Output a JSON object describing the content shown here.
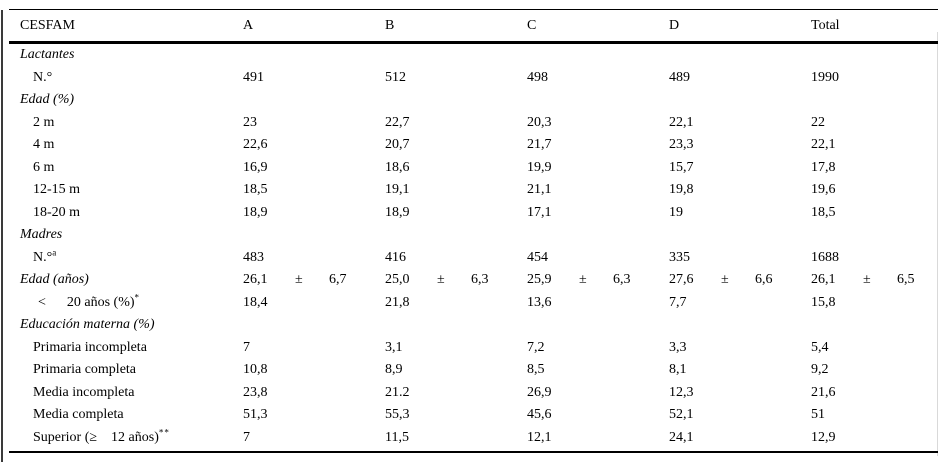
{
  "table": {
    "columns": [
      "CESFAM",
      "A",
      "B",
      "C",
      "D",
      "Total"
    ],
    "rows": [
      {
        "type": "section",
        "label": "Lactantes",
        "italic": true,
        "indent": 0
      },
      {
        "type": "data",
        "label": "N.°",
        "italic": false,
        "indent": 1,
        "cells": [
          "491",
          "512",
          "498",
          "489",
          "1990"
        ]
      },
      {
        "type": "section",
        "label": "Edad (%)",
        "italic": true,
        "indent": 0
      },
      {
        "type": "data",
        "label": "2 m",
        "italic": false,
        "indent": 1,
        "cells": [
          "23",
          "22,7",
          "20,3",
          "22,1",
          "22"
        ]
      },
      {
        "type": "data",
        "label": "4 m",
        "italic": false,
        "indent": 1,
        "cells": [
          "22,6",
          "20,7",
          "21,7",
          "23,3",
          "22,1"
        ]
      },
      {
        "type": "data",
        "label": "6 m",
        "italic": false,
        "indent": 1,
        "cells": [
          "16,9",
          "18,6",
          "19,9",
          "15,7",
          "17,8"
        ]
      },
      {
        "type": "data",
        "label": "12-15 m",
        "italic": false,
        "indent": 1,
        "cells": [
          "18,5",
          "19,1",
          "21,1",
          "19,8",
          "19,6"
        ]
      },
      {
        "type": "data",
        "label": "18-20 m",
        "italic": false,
        "indent": 1,
        "cells": [
          "18,9",
          "18,9",
          "17,1",
          "19",
          "18,5"
        ]
      },
      {
        "type": "section",
        "label": "Madres",
        "italic": true,
        "indent": 0
      },
      {
        "type": "data",
        "label": "N.°",
        "sup": "a",
        "italic": false,
        "indent": 1,
        "cells": [
          "483",
          "416",
          "454",
          "335",
          "1688"
        ]
      },
      {
        "type": "data",
        "label": "Edad (años)",
        "italic": true,
        "indent": 0,
        "cells": [
          [
            "26,1",
            "±",
            "6,7"
          ],
          [
            "25,0",
            "±",
            "6,3"
          ],
          [
            "25,9",
            "±",
            "6,3"
          ],
          [
            "27,6",
            "±",
            "6,6"
          ],
          [
            "26,1",
            "±",
            "6,5"
          ]
        ]
      },
      {
        "type": "data",
        "label": "<      20 años (%)",
        "sup": "*",
        "italic": false,
        "indent": 2,
        "cells": [
          "18,4",
          "21,8",
          "13,6",
          "7,7",
          "15,8"
        ]
      },
      {
        "type": "section",
        "label": "Educación materna (%)",
        "italic": true,
        "indent": 0
      },
      {
        "type": "data",
        "label": "Primaria incompleta",
        "italic": false,
        "indent": 1,
        "cells": [
          "7",
          "3,1",
          "7,2",
          "3,3",
          "5,4"
        ]
      },
      {
        "type": "data",
        "label": "Primaria completa",
        "italic": false,
        "indent": 1,
        "cells": [
          "10,8",
          "8,9",
          "8,5",
          "8,1",
          "9,2"
        ]
      },
      {
        "type": "data",
        "label": "Media incompleta",
        "italic": false,
        "indent": 1,
        "cells": [
          "23,8",
          "21.2",
          "26,9",
          "12,3",
          "21,6"
        ]
      },
      {
        "type": "data",
        "label": "Media completa",
        "italic": false,
        "indent": 1,
        "cells": [
          "51,3",
          "55,3",
          "45,6",
          "52,1",
          "51"
        ]
      },
      {
        "type": "data",
        "label": "Superior (≥    12 años)",
        "sup": "**",
        "italic": false,
        "indent": 1,
        "cells": [
          "7",
          "11,5",
          "12,1",
          "24,1",
          "12,9"
        ]
      }
    ]
  }
}
